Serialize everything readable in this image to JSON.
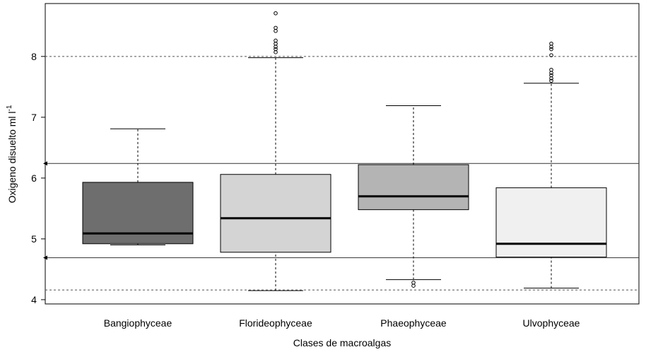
{
  "chart_data": {
    "type": "box",
    "x_label": "Clases de macroalgas",
    "y_label": {
      "text": "Oxigeno disuelto ml l",
      "superscript": "-1"
    },
    "ylim": [
      3.93,
      8.87
    ],
    "yticks": [
      4,
      5,
      6,
      7,
      8
    ],
    "reference_lines": [
      {
        "value": 8,
        "style": "dashed"
      },
      {
        "value": 4.16,
        "style": "dashed"
      },
      {
        "value": 6.24,
        "style": "solid-arrow"
      },
      {
        "value": 4.69,
        "style": "solid-arrow"
      }
    ],
    "series": [
      {
        "name": "Bangiophyceae",
        "color": "#6e6e6e",
        "min": 4.9,
        "q1": 4.92,
        "median": 5.09,
        "q3": 5.93,
        "max": 6.81,
        "outliers": []
      },
      {
        "name": "Florideophyceae",
        "color": "#d4d4d4",
        "min": 4.15,
        "q1": 4.78,
        "median": 5.34,
        "q3": 6.06,
        "max": 7.98,
        "outliers": [
          8.71,
          8.47,
          8.42,
          8.26,
          8.21,
          8.16,
          8.12,
          8.07
        ]
      },
      {
        "name": "Phaeophyceae",
        "color": "#b4b4b4",
        "min": 4.33,
        "q1": 5.48,
        "median": 5.7,
        "q3": 6.22,
        "max": 7.19,
        "outliers": [
          4.28,
          4.23
        ]
      },
      {
        "name": "Ulvophyceae",
        "color": "#f0f0f0",
        "min": 4.19,
        "q1": 4.7,
        "median": 4.92,
        "q3": 5.84,
        "max": 7.56,
        "outliers": [
          8.21,
          8.16,
          8.12,
          8.02,
          7.78,
          7.73,
          7.69,
          7.64,
          7.6
        ]
      }
    ]
  }
}
